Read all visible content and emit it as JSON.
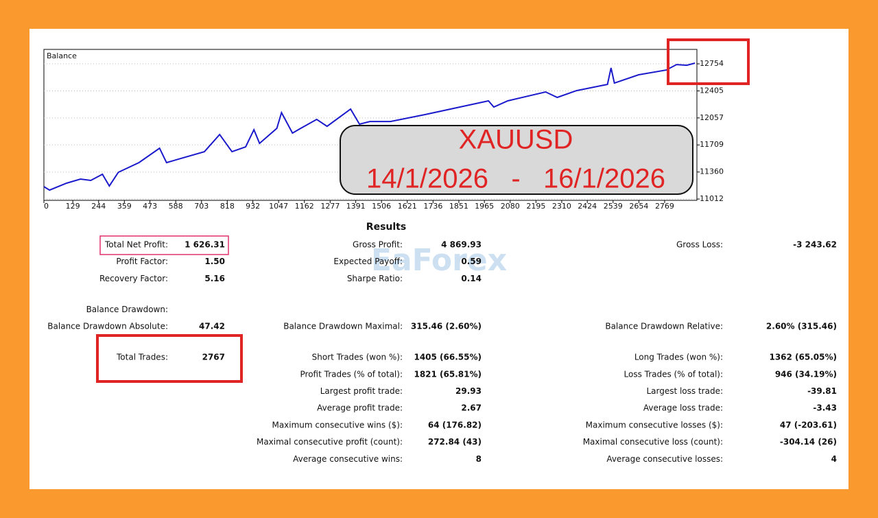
{
  "chart_data": {
    "type": "line",
    "title": "Balance",
    "x": [
      0,
      25,
      101,
      163,
      209,
      261,
      292,
      332,
      424,
      516,
      547,
      599,
      716,
      784,
      839,
      900,
      937,
      962,
      1039,
      1060,
      1109,
      1146,
      1217,
      1263,
      1368,
      1408,
      1454,
      1546,
      1700,
      1884,
      1983,
      2007,
      2069,
      2238,
      2290,
      2376,
      2514,
      2530,
      2545,
      2653,
      2776,
      2822,
      2868,
      2904
    ],
    "series": [
      {
        "color": "#1a1acc",
        "values": [
          11172,
          11127,
          11216,
          11269,
          11251,
          11331,
          11180,
          11357,
          11481,
          11667,
          11481,
          11525,
          11622,
          11843,
          11622,
          11684,
          11905,
          11729,
          11923,
          12126,
          11861,
          11923,
          12038,
          11949,
          12171,
          11976,
          12011,
          12011,
          12100,
          12215,
          12277,
          12197,
          12277,
          12392,
          12321,
          12409,
          12489,
          12701,
          12506,
          12613,
          12674,
          12745,
          12736,
          12763
        ]
      }
    ],
    "xlim": [
      0,
      2913
    ],
    "ylim": [
      10995,
      12940
    ],
    "xticks": [
      0,
      129,
      244,
      359,
      473,
      588,
      703,
      818,
      932,
      1047,
      1162,
      1277,
      1391,
      1506,
      1621,
      1736,
      1851,
      1965,
      2080,
      2195,
      2310,
      2424,
      2539,
      2654,
      2769
    ],
    "yticks": [
      11012,
      11360,
      11709,
      12057,
      12405,
      12754
    ],
    "grid": true
  },
  "overlay": {
    "symbol": "XAUUSD",
    "period": "14/1/2026   -   16/1/2026"
  },
  "watermark": "EaForex",
  "results": {
    "title": "Results",
    "sections": [
      [
        {
          "left": {
            "label": "Total Net Profit:",
            "value": "1 626.31"
          },
          "mid": {
            "label": "Gross Profit:",
            "value": "4 869.93"
          },
          "right": {
            "label": "Gross Loss:",
            "value": "-3 243.62"
          }
        },
        {
          "left": {
            "label": "Profit Factor:",
            "value": "1.50"
          },
          "mid": {
            "label": "Expected Payoff:",
            "value": "0.59"
          }
        },
        {
          "left": {
            "label": "Recovery Factor:",
            "value": "5.16"
          },
          "mid": {
            "label": "Sharpe Ratio:",
            "value": "0.14"
          }
        }
      ],
      [
        {
          "left": {
            "label": "Balance Drawdown:"
          }
        },
        {
          "left": {
            "label": "Balance Drawdown Absolute:",
            "value": "47.42"
          },
          "mid": {
            "label": "Balance Drawdown Maximal:",
            "value": "315.46 (2.60%)"
          },
          "right": {
            "label": "Balance Drawdown Relative:",
            "value": "2.60% (315.46)"
          }
        }
      ],
      [
        {
          "left": {
            "label": "Total Trades:",
            "value": "2767"
          },
          "mid": {
            "label": "Short Trades (won %):",
            "value": "1405 (66.55%)"
          },
          "right": {
            "label": "Long Trades (won %):",
            "value": "1362 (65.05%)"
          }
        },
        {
          "mid": {
            "label": "Profit Trades (% of total):",
            "value": "1821 (65.81%)"
          },
          "right": {
            "label": "Loss Trades (% of total):",
            "value": "946 (34.19%)"
          }
        },
        {
          "mid": {
            "label": "Largest profit trade:",
            "value": "29.93"
          },
          "right": {
            "label": "Largest loss trade:",
            "value": "-39.81"
          }
        },
        {
          "mid": {
            "label": "Average profit trade:",
            "value": "2.67"
          },
          "right": {
            "label": "Average loss trade:",
            "value": "-3.43"
          }
        },
        {
          "mid": {
            "label": "Maximum consecutive wins ($):",
            "value": "64 (176.82)"
          },
          "right": {
            "label": "Maximum consecutive losses ($):",
            "value": "47 (-203.61)"
          }
        },
        {
          "mid": {
            "label": "Maximal consecutive profit (count):",
            "value": "272.84 (43)"
          },
          "right": {
            "label": "Maximal consecutive loss (count):",
            "value": "-304.14 (26)"
          }
        },
        {
          "mid": {
            "label": "Average consecutive wins:",
            "value": "8"
          },
          "right": {
            "label": "Average consecutive losses:",
            "value": "4"
          }
        }
      ]
    ]
  }
}
